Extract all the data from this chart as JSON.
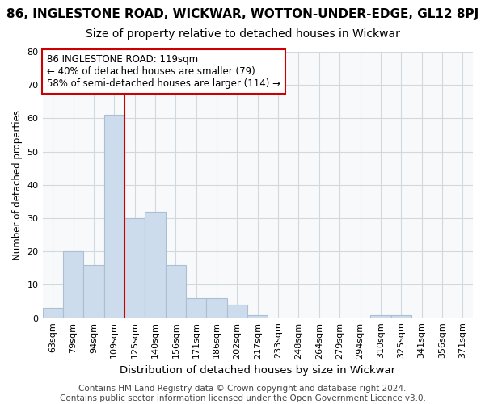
{
  "title": "86, INGLESTONE ROAD, WICKWAR, WOTTON-UNDER-EDGE, GL12 8PJ",
  "subtitle": "Size of property relative to detached houses in Wickwar",
  "xlabel": "Distribution of detached houses by size in Wickwar",
  "ylabel": "Number of detached properties",
  "bar_labels": [
    "63sqm",
    "79sqm",
    "94sqm",
    "109sqm",
    "125sqm",
    "140sqm",
    "156sqm",
    "171sqm",
    "186sqm",
    "202sqm",
    "217sqm",
    "233sqm",
    "248sqm",
    "264sqm",
    "279sqm",
    "294sqm",
    "310sqm",
    "325sqm",
    "341sqm",
    "356sqm",
    "371sqm"
  ],
  "bar_values": [
    3,
    20,
    16,
    61,
    30,
    32,
    16,
    6,
    6,
    4,
    1,
    0,
    0,
    0,
    0,
    0,
    1,
    1,
    0,
    0,
    0
  ],
  "bar_color": "#ccdcec",
  "bar_edgecolor": "#aabfcf",
  "vline_x_index": 4,
  "vline_color": "#cc0000",
  "ylim": [
    0,
    80
  ],
  "yticks": [
    0,
    10,
    20,
    30,
    40,
    50,
    60,
    70,
    80
  ],
  "annotation_box_text": "86 INGLESTONE ROAD: 119sqm\n← 40% of detached houses are smaller (79)\n58% of semi-detached houses are larger (114) →",
  "footer_text": "Contains HM Land Registry data © Crown copyright and database right 2024.\nContains public sector information licensed under the Open Government Licence v3.0.",
  "bg_color": "#ffffff",
  "plot_bg_color": "#f8f9fb",
  "grid_color": "#d0d8e0",
  "title_fontsize": 11,
  "subtitle_fontsize": 10,
  "xlabel_fontsize": 9.5,
  "ylabel_fontsize": 8.5,
  "tick_fontsize": 8,
  "footer_fontsize": 7.5
}
